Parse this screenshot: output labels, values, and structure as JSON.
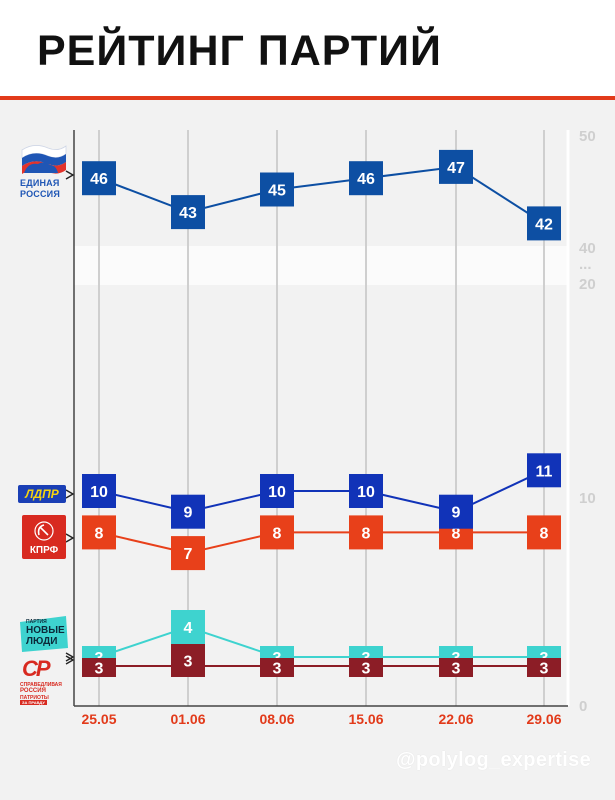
{
  "header": {
    "title": "РЕЙТИНГ ПАРТИЙ"
  },
  "footer": {
    "handle": "@polylog_expertise"
  },
  "logos": {
    "er_line1": "ЕДИНАЯ",
    "er_line2": "РОССИЯ",
    "ldpr": "ЛДПР",
    "kprf": "КПРФ",
    "nl_small": "ПАРТИЯ",
    "nl_line1": "НОВЫЕ",
    "nl_line2": "ЛЮДИ",
    "sr_mark": "СР",
    "sr_line1": "СПРАВЕДЛИВАЯ",
    "sr_line2": "РОССИЯ",
    "sr_line3": "ПАТРИОТЫ",
    "sr_line4": "ЗА ПРАВДУ"
  },
  "colors": {
    "er": "#0d4fa3",
    "ldpr": "#1133b8",
    "kprf": "#e8401a",
    "novye_lyudi": "#3ed3cf",
    "sr": "#8c1d26",
    "axis_date": "#e23a1a",
    "title_rule": "#e23a1a"
  },
  "chart_data": {
    "type": "line",
    "title": "РЕЙТИНГ ПАРТИЙ",
    "x": [
      "25.05",
      "01.06",
      "08.06",
      "15.06",
      "22.06",
      "29.06"
    ],
    "yaxis_ticks": [
      "50",
      "40",
      "...",
      "20",
      "10",
      "0"
    ],
    "axis_break": [
      20,
      40
    ],
    "ylim": [
      0,
      50
    ],
    "series": [
      {
        "key": "er",
        "values": [
          46,
          43,
          45,
          46,
          47,
          42
        ]
      },
      {
        "key": "ldpr",
        "values": [
          10,
          9,
          10,
          10,
          9,
          11
        ]
      },
      {
        "key": "kprf",
        "values": [
          8,
          7,
          8,
          8,
          8,
          8
        ]
      },
      {
        "key": "novye_lyudi",
        "values": [
          3,
          4,
          3,
          3,
          3,
          3
        ]
      },
      {
        "key": "sr",
        "values": [
          3,
          3,
          3,
          3,
          3,
          3
        ]
      }
    ]
  }
}
